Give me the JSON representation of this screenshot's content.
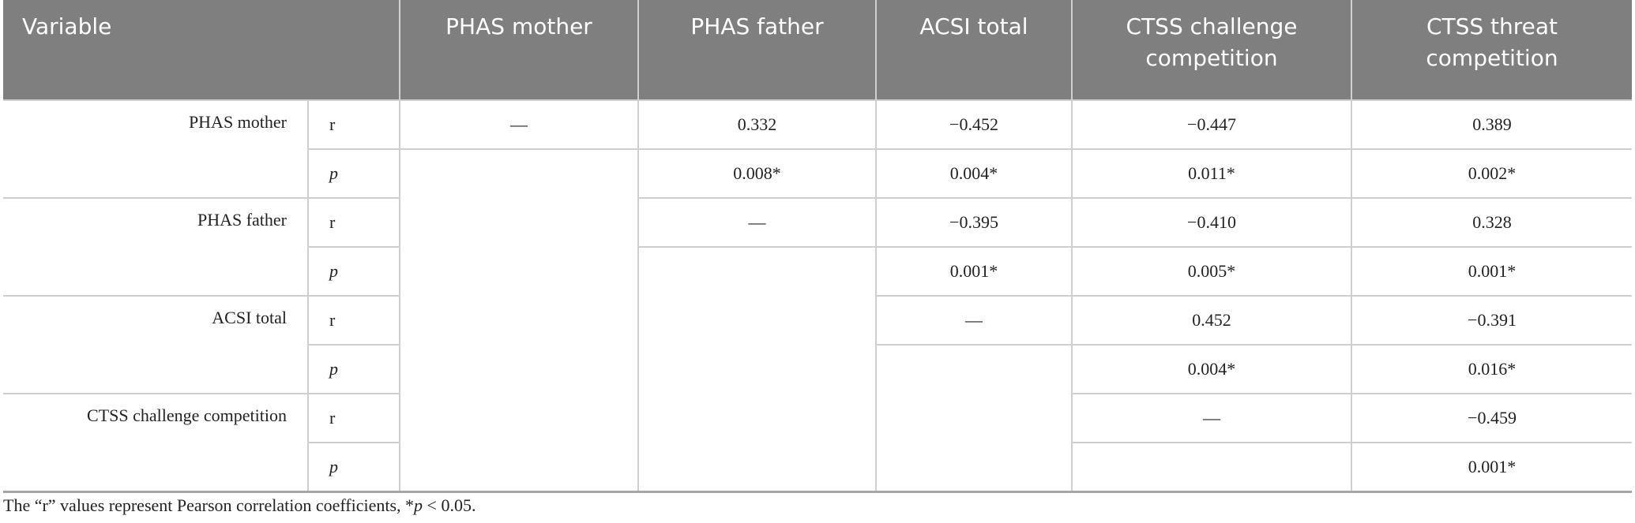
{
  "table": {
    "columns": [
      "Variable",
      "PHAS mother",
      "PHAS father",
      "ACSI total",
      "CTSS challenge competition",
      "CTSS threat competition"
    ],
    "rows": [
      {
        "variable": "PHAS mother",
        "r_label": "r",
        "r": [
          "—",
          "0.332",
          "−0.452",
          "−0.447",
          "0.389"
        ],
        "p_label": "p",
        "p": [
          "0.008*",
          "0.004*",
          "0.011*",
          "0.002*"
        ]
      },
      {
        "variable": "PHAS father",
        "r_label": "r",
        "r": [
          "—",
          "−0.395",
          "−0.410",
          "0.328"
        ],
        "p_label": "p",
        "p": [
          "0.001*",
          "0.005*",
          "0.001*"
        ]
      },
      {
        "variable": "ACSI total",
        "r_label": "r",
        "r": [
          "—",
          "0.452",
          "−0.391"
        ],
        "p_label": "p",
        "p": [
          "0.004*",
          "0.016*"
        ]
      },
      {
        "variable": "CTSS challenge competition",
        "r_label": "r",
        "r": [
          "—",
          "−0.459"
        ],
        "p_label": "p",
        "p": [
          "0.001*"
        ]
      }
    ]
  },
  "footnote": {
    "prefix": "The “r” values represent Pearson correlation coefficients, *",
    "italic": "p",
    "suffix": " < 0.05."
  }
}
